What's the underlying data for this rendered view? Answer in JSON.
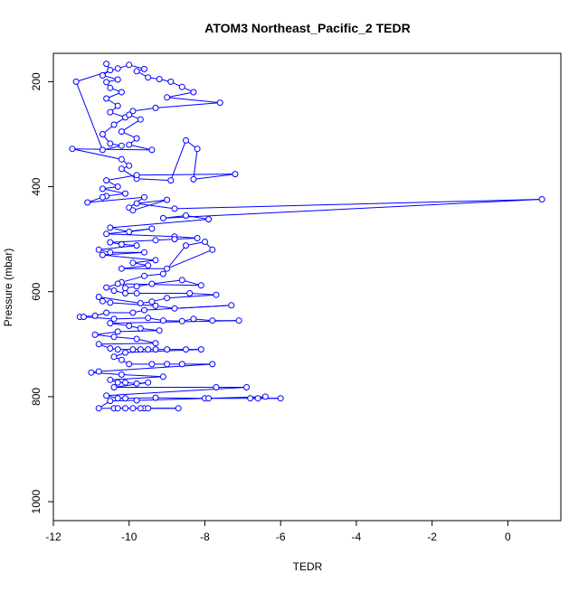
{
  "chart_data": {
    "type": "line",
    "title": "ATOM3 Northeast_Pacific_2 TEDR",
    "xlabel": "TEDR",
    "ylabel": "Pressure (mbar)",
    "xlim": [
      -12.0,
      1.4
    ],
    "ylim": [
      1036,
      146
    ],
    "y_reversed": true,
    "x_ticks": [
      -12,
      -10,
      -8,
      -6,
      -4,
      -2,
      0
    ],
    "x_tick_labels": [
      "-12",
      "-10",
      "-8",
      "-6",
      "-4",
      "-2",
      "0"
    ],
    "y_ticks": [
      200,
      400,
      600,
      800,
      1000
    ],
    "y_tick_labels": [
      "200",
      "400",
      "600",
      "800",
      "1000"
    ],
    "grid": false,
    "series": [
      {
        "color": "#0000ff",
        "marker": "open-circle",
        "points": [
          [
            -10.6,
            166
          ],
          [
            -10.5,
            178
          ],
          [
            -10.7,
            188
          ],
          [
            -10.3,
            196
          ],
          [
            -10.6,
            201
          ],
          [
            -10.5,
            212
          ],
          [
            -10.2,
            220
          ],
          [
            -10.6,
            232
          ],
          [
            -10.3,
            246
          ],
          [
            -10.5,
            258
          ],
          [
            -10.1,
            268
          ],
          [
            -10.4,
            282
          ],
          [
            -10.7,
            300
          ],
          [
            -10.5,
            318
          ],
          [
            -10.2,
            322
          ],
          [
            -10.7,
            330
          ],
          [
            -11.4,
            200
          ],
          [
            -10.3,
            175
          ],
          [
            -10.0,
            168
          ],
          [
            -9.6,
            176
          ],
          [
            -9.8,
            180
          ],
          [
            -9.5,
            192
          ],
          [
            -9.2,
            195
          ],
          [
            -8.9,
            200
          ],
          [
            -8.6,
            210
          ],
          [
            -8.3,
            220
          ],
          [
            -9.0,
            230
          ],
          [
            -7.6,
            240
          ],
          [
            -9.3,
            250
          ],
          [
            -9.9,
            256
          ],
          [
            -10.0,
            263
          ],
          [
            -9.7,
            272
          ],
          [
            -10.2,
            295
          ],
          [
            -9.8,
            308
          ],
          [
            -10.0,
            320
          ],
          [
            -9.4,
            330
          ],
          [
            -11.5,
            328
          ],
          [
            -10.2,
            348
          ],
          [
            -10.0,
            360
          ],
          [
            -10.2,
            366
          ],
          [
            -9.8,
            385
          ],
          [
            -8.9,
            388
          ],
          [
            -8.5,
            312
          ],
          [
            -8.2,
            328
          ],
          [
            -8.3,
            386
          ],
          [
            -7.2,
            376
          ],
          [
            -9.8,
            378
          ],
          [
            -10.6,
            388
          ],
          [
            -10.3,
            400
          ],
          [
            -10.7,
            404
          ],
          [
            -10.1,
            413
          ],
          [
            -10.6,
            418
          ],
          [
            -10.7,
            420
          ],
          [
            -11.1,
            430
          ],
          [
            -9.6,
            420
          ],
          [
            -10.0,
            440
          ],
          [
            -9.9,
            445
          ],
          [
            -9.0,
            425
          ],
          [
            -9.8,
            432
          ],
          [
            -8.8,
            442
          ],
          [
            0.9,
            424
          ],
          [
            -9.1,
            460
          ],
          [
            -8.5,
            455
          ],
          [
            -7.9,
            462
          ],
          [
            -10.5,
            478
          ],
          [
            -10.0,
            486
          ],
          [
            -9.4,
            480
          ],
          [
            -10.6,
            490
          ],
          [
            -8.8,
            495
          ],
          [
            -8.2,
            498
          ],
          [
            -8.8,
            500
          ],
          [
            -9.3,
            502
          ],
          [
            -10.5,
            506
          ],
          [
            -10.2,
            510
          ],
          [
            -9.8,
            512
          ],
          [
            -10.8,
            520
          ],
          [
            -10.5,
            525
          ],
          [
            -9.6,
            525
          ],
          [
            -10.7,
            530
          ],
          [
            -9.3,
            540
          ],
          [
            -9.9,
            545
          ],
          [
            -9.5,
            550
          ],
          [
            -10.2,
            556
          ],
          [
            -9.0,
            556
          ],
          [
            -7.8,
            520
          ],
          [
            -8.0,
            505
          ],
          [
            -8.5,
            512
          ],
          [
            -9.1,
            566
          ],
          [
            -9.6,
            570
          ],
          [
            -10.2,
            582
          ],
          [
            -10.1,
            593
          ],
          [
            -9.8,
            590
          ],
          [
            -9.4,
            585
          ],
          [
            -8.6,
            578
          ],
          [
            -8.1,
            588
          ],
          [
            -10.3,
            585
          ],
          [
            -10.6,
            592
          ],
          [
            -10.4,
            598
          ],
          [
            -10.1,
            603
          ],
          [
            -9.8,
            603
          ],
          [
            -8.4,
            603
          ],
          [
            -7.7,
            606
          ],
          [
            -9.0,
            612
          ],
          [
            -9.4,
            619
          ],
          [
            -9.7,
            622
          ],
          [
            -10.8,
            610
          ],
          [
            -10.7,
            618
          ],
          [
            -10.5,
            621
          ],
          [
            -9.3,
            627
          ],
          [
            -8.8,
            632
          ],
          [
            -7.3,
            626
          ],
          [
            -9.6,
            635
          ],
          [
            -9.9,
            640
          ],
          [
            -10.6,
            640
          ],
          [
            -10.9,
            646
          ],
          [
            -11.3,
            648
          ],
          [
            -11.2,
            648
          ],
          [
            -10.4,
            652
          ],
          [
            -9.5,
            650
          ],
          [
            -9.1,
            655
          ],
          [
            -8.6,
            656
          ],
          [
            -8.3,
            652
          ],
          [
            -7.8,
            655
          ],
          [
            -7.1,
            655
          ],
          [
            -10.5,
            660
          ],
          [
            -10.0,
            665
          ],
          [
            -9.7,
            670
          ],
          [
            -9.2,
            674
          ],
          [
            -10.3,
            676
          ],
          [
            -10.9,
            682
          ],
          [
            -10.4,
            686
          ],
          [
            -9.8,
            690
          ],
          [
            -9.3,
            698
          ],
          [
            -10.8,
            700
          ],
          [
            -10.5,
            708
          ],
          [
            -10.3,
            710
          ],
          [
            -9.9,
            710
          ],
          [
            -9.7,
            710
          ],
          [
            -9.5,
            710
          ],
          [
            -9.3,
            710
          ],
          [
            -9.0,
            710
          ],
          [
            -8.5,
            710
          ],
          [
            -8.1,
            710
          ],
          [
            -10.1,
            716
          ],
          [
            -10.4,
            724
          ],
          [
            -10.2,
            730
          ],
          [
            -10.0,
            738
          ],
          [
            -9.4,
            738
          ],
          [
            -9.0,
            738
          ],
          [
            -8.6,
            738
          ],
          [
            -7.8,
            738
          ],
          [
            -10.8,
            752
          ],
          [
            -11.0,
            754
          ],
          [
            -10.2,
            758
          ],
          [
            -9.1,
            762
          ],
          [
            -10.5,
            768
          ],
          [
            -10.3,
            773
          ],
          [
            -10.1,
            773
          ],
          [
            -9.8,
            775
          ],
          [
            -9.5,
            773
          ],
          [
            -10.4,
            782
          ],
          [
            -7.7,
            782
          ],
          [
            -6.9,
            782
          ],
          [
            -10.6,
            798
          ],
          [
            -10.3,
            803
          ],
          [
            -10.1,
            803
          ],
          [
            -9.3,
            802
          ],
          [
            -8.0,
            803
          ],
          [
            -7.9,
            803
          ],
          [
            -6.6,
            803
          ],
          [
            -6.0,
            803
          ],
          [
            -6.8,
            803
          ],
          [
            -6.4,
            800
          ],
          [
            -9.8,
            807
          ],
          [
            -10.5,
            808
          ],
          [
            -10.8,
            822
          ],
          [
            -10.4,
            822
          ],
          [
            -10.3,
            822
          ],
          [
            -10.1,
            822
          ],
          [
            -9.6,
            822
          ],
          [
            -9.7,
            822
          ],
          [
            -8.7,
            822
          ],
          [
            -9.5,
            822
          ],
          [
            -9.9,
            822
          ]
        ]
      }
    ]
  }
}
